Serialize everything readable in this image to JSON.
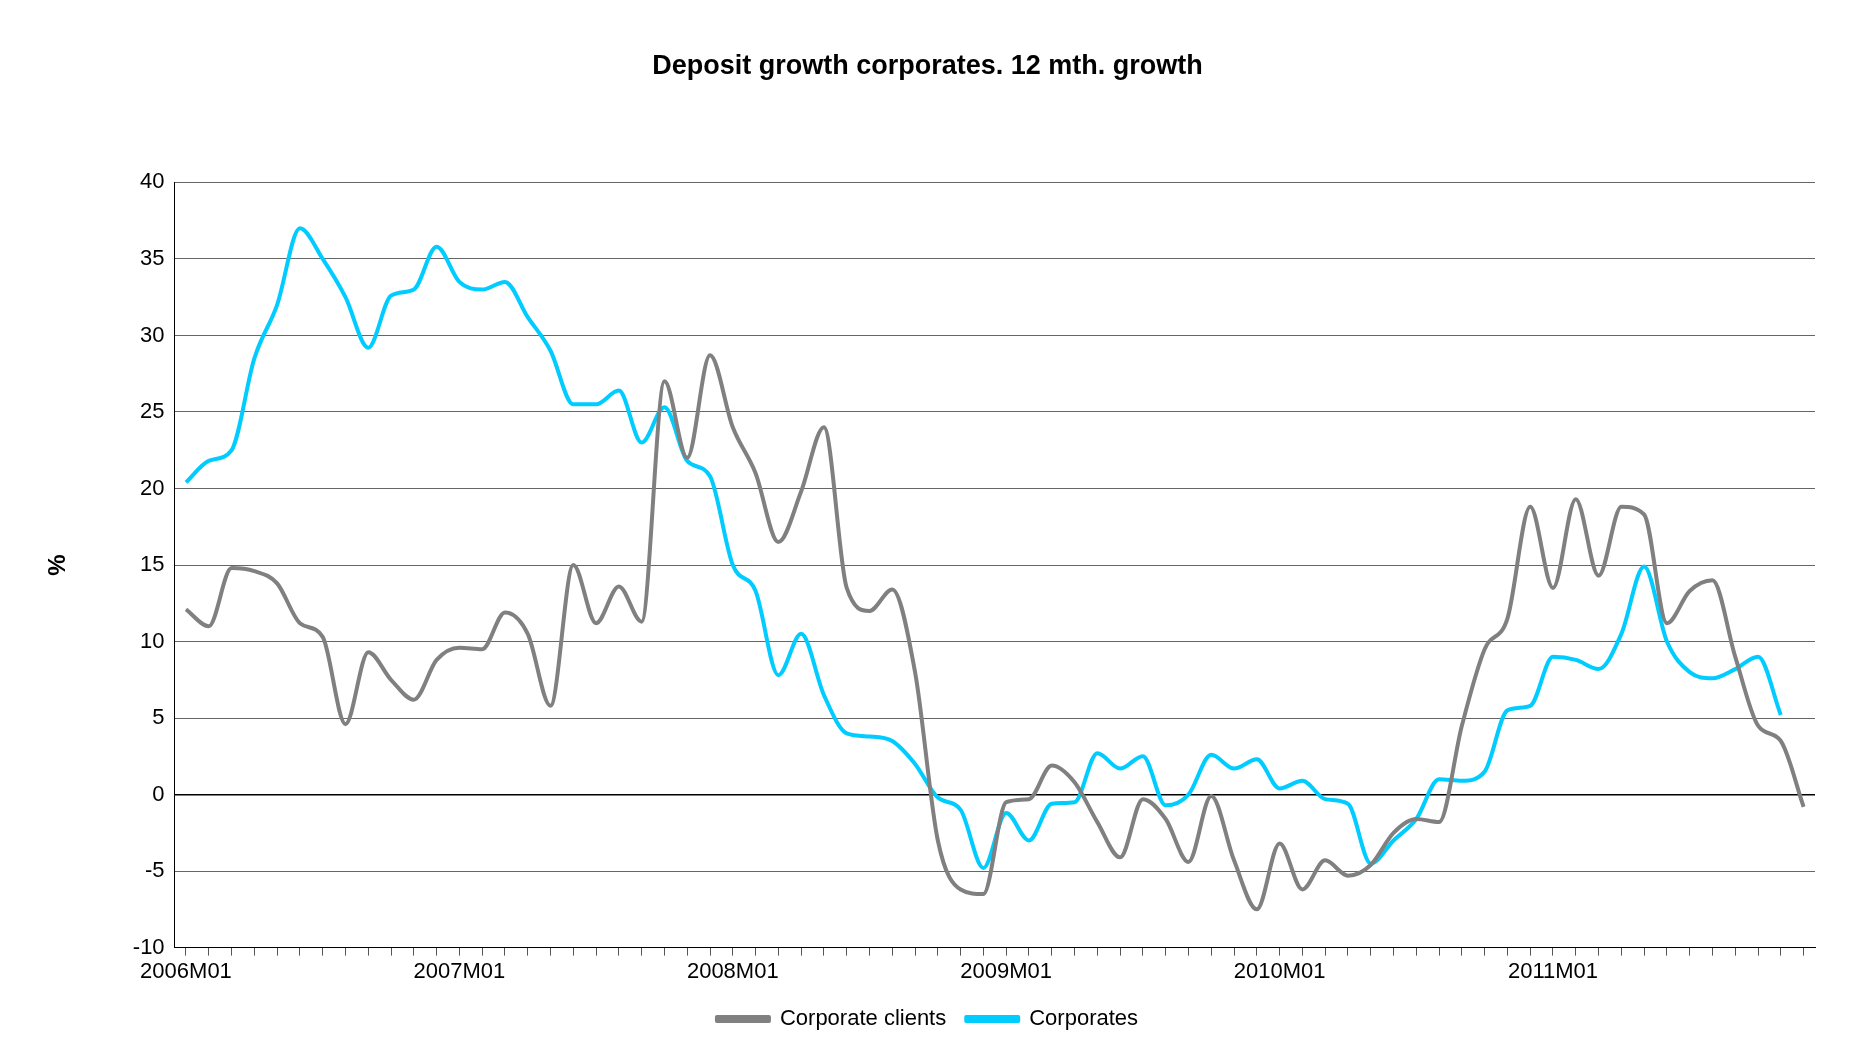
{
  "chart_data": {
    "type": "line",
    "title": "Deposit growth corporates. 12 mth. growth",
    "ylabel": "%",
    "categories": [
      "2006M01",
      null,
      null,
      null,
      null,
      null,
      null,
      null,
      null,
      null,
      null,
      null,
      "2007M01",
      null,
      null,
      null,
      null,
      null,
      null,
      null,
      null,
      null,
      null,
      null,
      "2008M01",
      null,
      null,
      null,
      null,
      null,
      null,
      null,
      null,
      null,
      null,
      null,
      "2009M01",
      null,
      null,
      null,
      null,
      null,
      null,
      null,
      null,
      null,
      null,
      null,
      "2010M01",
      null,
      null,
      null,
      null,
      null,
      null,
      null,
      null,
      null,
      null,
      null,
      "2011M01",
      null,
      null,
      null,
      null,
      null,
      null,
      null,
      null,
      null,
      null,
      null
    ],
    "series": [
      {
        "name": "Corporate clients",
        "color": "#808080",
        "values": [
          12.1,
          11.0,
          14.8,
          14.6,
          13.8,
          11.2,
          10.3,
          4.6,
          9.3,
          7.5,
          6.2,
          8.8,
          9.6,
          9.5,
          11.9,
          10.5,
          5.8,
          15.0,
          11.2,
          13.6,
          11.3,
          27.0,
          22.0,
          28.7,
          24.0,
          21.0,
          16.5,
          19.8,
          24.0,
          13.5,
          12.0,
          13.4,
          8.0,
          -3.0,
          -6.2,
          -6.5,
          -0.5,
          -0.3,
          1.9,
          0.8,
          -1.8,
          -4.1,
          -0.3,
          -1.6,
          -4.4,
          -0.1,
          -4.3,
          -7.5,
          -3.2,
          -6.2,
          -4.3,
          -5.3,
          -4.6,
          -2.5,
          -1.6,
          -1.8,
          4.5,
          9.5,
          11.5,
          18.8,
          13.5,
          19.3,
          14.3,
          18.8,
          18.3,
          11.2,
          13.3,
          14.0,
          9.0,
          4.5,
          3.5,
          -0.8
        ]
      },
      {
        "name": "Corporates",
        "color": "#00ccff",
        "values": [
          20.4,
          21.8,
          22.5,
          28.5,
          32.0,
          37.0,
          35.0,
          32.5,
          29.2,
          32.6,
          33.0,
          35.8,
          33.5,
          33.0,
          33.5,
          31.2,
          29.0,
          25.5,
          25.5,
          26.4,
          23.0,
          25.3,
          21.8,
          20.8,
          15.0,
          13.3,
          7.8,
          10.5,
          6.5,
          4.0,
          3.8,
          3.5,
          2.0,
          -0.2,
          -1.0,
          -4.8,
          -1.2,
          -3.0,
          -0.6,
          -0.5,
          2.7,
          1.7,
          2.5,
          -0.7,
          0.0,
          2.6,
          1.7,
          2.3,
          0.4,
          0.9,
          -0.3,
          -0.6,
          -4.5,
          -3.0,
          -1.6,
          1.0,
          0.9,
          1.5,
          5.5,
          5.8,
          9.0,
          8.8,
          8.2,
          10.5,
          14.9,
          10.0,
          8.0,
          7.6,
          8.2,
          9.0,
          5.2,
          null
        ]
      }
    ],
    "ylim": [
      -10,
      40
    ],
    "yticks": [
      -10,
      -5,
      0,
      5,
      10,
      15,
      20,
      25,
      30,
      35,
      40
    ],
    "grid": "y",
    "legend": "bottom",
    "marker": "none",
    "line_style": "solid"
  }
}
